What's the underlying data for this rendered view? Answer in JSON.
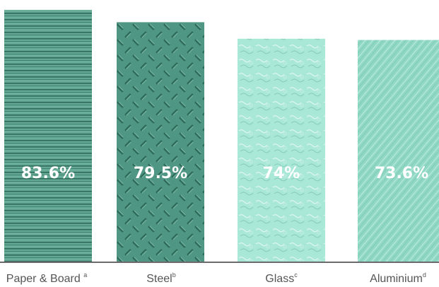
{
  "chart_data": {
    "type": "bar",
    "categories": [
      "Paper & Board",
      "Steel",
      "Glass",
      "Aluminium"
    ],
    "footnote_marks": [
      "a",
      "b",
      "c",
      "d"
    ],
    "values": [
      83.6,
      79.5,
      74,
      73.6
    ],
    "value_labels": [
      "83.6%",
      "79.5%",
      "74%",
      "73.6%"
    ],
    "ylim": [
      0,
      85
    ],
    "grid": false,
    "colors": [
      "#5fa58f",
      "#4e9683",
      "#a8e6d6",
      "#8fd8c4"
    ]
  }
}
